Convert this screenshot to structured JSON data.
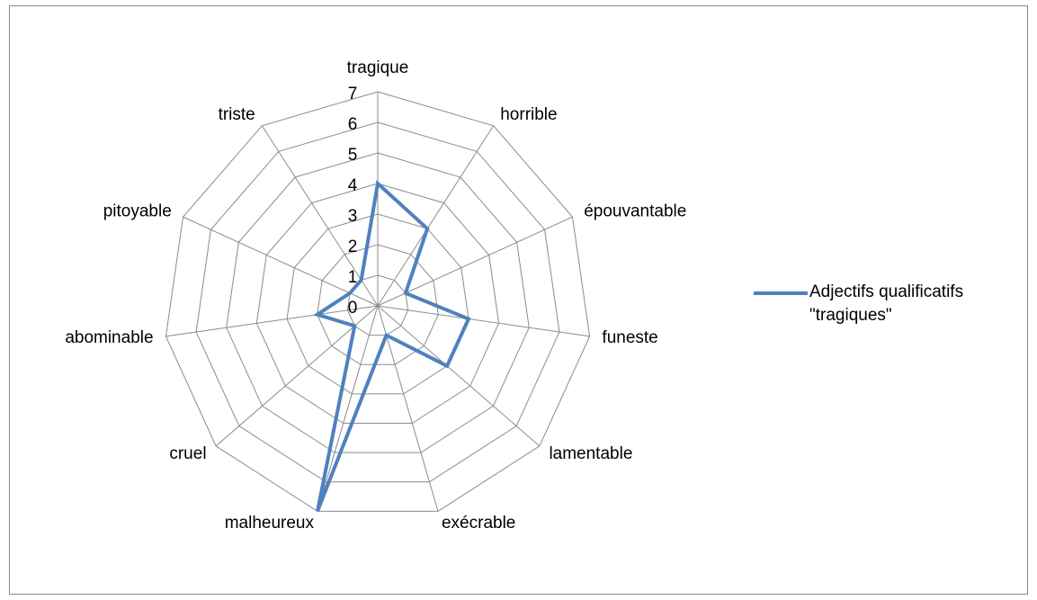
{
  "chart_data": {
    "type": "radar",
    "categories": [
      "tragique",
      "horrible",
      "épouvantable",
      "funeste",
      "lamentable",
      "exécrable",
      "malheureux",
      "cruel",
      "abominable",
      "pitoyable",
      "triste"
    ],
    "series": [
      {
        "name": "Adjectifs qualificatifs \"tragiques\"",
        "color": "#4f81bd",
        "values": [
          4,
          3,
          1,
          3,
          3,
          1,
          7,
          1,
          2,
          1,
          1
        ]
      }
    ],
    "ylim": [
      0,
      7
    ],
    "yticks": [
      0,
      1,
      2,
      3,
      4,
      5,
      6,
      7
    ],
    "grid": true,
    "legend": "right"
  }
}
